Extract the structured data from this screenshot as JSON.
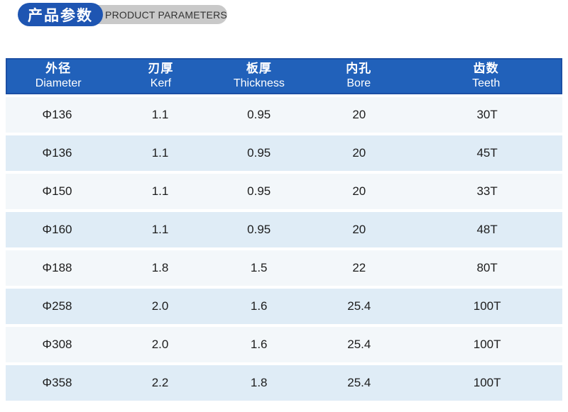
{
  "title": {
    "zh": "产品参数",
    "en": "PRODUCT PARAMETERS"
  },
  "colors": {
    "badge_blue": "#1e55b2",
    "pill_gray": "#c9c9c9",
    "header_blue": "#2161ba",
    "header_border": "#1c4fa4",
    "row_light": "#f3f7fa",
    "row_blue": "#dfecf6"
  },
  "table": {
    "columns": [
      {
        "zh": "外径",
        "en": "Diameter"
      },
      {
        "zh": "刃厚",
        "en": "Kerf"
      },
      {
        "zh": "板厚",
        "en": "Thickness"
      },
      {
        "zh": "内孔",
        "en": "Bore"
      },
      {
        "zh": "齿数",
        "en": "Teeth"
      }
    ],
    "rows": [
      [
        "Φ136",
        "1.1",
        "0.95",
        "20",
        "30T"
      ],
      [
        "Φ136",
        "1.1",
        "0.95",
        "20",
        "45T"
      ],
      [
        "Φ150",
        "1.1",
        "0.95",
        "20",
        "33T"
      ],
      [
        "Φ160",
        "1.1",
        "0.95",
        "20",
        "48T"
      ],
      [
        "Φ188",
        "1.8",
        "1.5",
        "22",
        "80T"
      ],
      [
        "Φ258",
        "2.0",
        "1.6",
        "25.4",
        "100T"
      ],
      [
        "Φ308",
        "2.0",
        "1.6",
        "25.4",
        "100T"
      ],
      [
        "Φ358",
        "2.2",
        "1.8",
        "25.4",
        "100T"
      ]
    ]
  }
}
